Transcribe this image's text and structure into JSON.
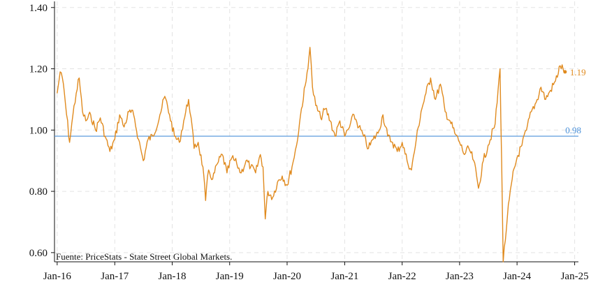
{
  "chart_data": {
    "type": "line",
    "title": "",
    "xlabel": "",
    "ylabel": "",
    "source_note": "Fuente: PriceStats - State Street Global Markets.",
    "ylim": [
      0.57,
      1.42
    ],
    "xlim": [
      "2015-12-15",
      "2025-01-25"
    ],
    "grid": true,
    "yticks": [
      {
        "value": 0.6,
        "label": "0.60"
      },
      {
        "value": 0.8,
        "label": "0.80"
      },
      {
        "value": 1.0,
        "label": "1.00"
      },
      {
        "value": 1.2,
        "label": "1.20"
      },
      {
        "value": 1.4,
        "label": "1.40"
      }
    ],
    "xticks": [
      {
        "value": "2016-01-01",
        "label": "Jan-16"
      },
      {
        "value": "2017-01-01",
        "label": "Jan-17"
      },
      {
        "value": "2018-01-01",
        "label": "Jan-18"
      },
      {
        "value": "2019-01-01",
        "label": "Jan-19"
      },
      {
        "value": "2020-01-01",
        "label": "Jan-20"
      },
      {
        "value": "2021-01-01",
        "label": "Jan-21"
      },
      {
        "value": "2022-01-01",
        "label": "Jan-22"
      },
      {
        "value": "2023-01-01",
        "label": "Jan-23"
      },
      {
        "value": "2024-01-01",
        "label": "Jan-24"
      },
      {
        "value": "2025-01-01",
        "label": "Jan-25"
      }
    ],
    "reference_line": {
      "value": 0.98,
      "label": "0.98",
      "color": "#4a90d9"
    },
    "series": [
      {
        "color": "#e08a1e",
        "last_value_label": "1.19",
        "points": [
          [
            "2016-01-01",
            1.12
          ],
          [
            "2016-01-20",
            1.19
          ],
          [
            "2016-02-10",
            1.15
          ],
          [
            "2016-03-01",
            1.05
          ],
          [
            "2016-03-20",
            0.96
          ],
          [
            "2016-04-10",
            1.05
          ],
          [
            "2016-05-01",
            1.12
          ],
          [
            "2016-05-20",
            1.17
          ],
          [
            "2016-06-10",
            1.06
          ],
          [
            "2016-07-01",
            1.03
          ],
          [
            "2016-08-01",
            1.05
          ],
          [
            "2016-09-01",
            1.0
          ],
          [
            "2016-10-01",
            1.04
          ],
          [
            "2016-11-01",
            0.98
          ],
          [
            "2016-12-01",
            0.93
          ],
          [
            "2017-01-01",
            0.97
          ],
          [
            "2017-02-01",
            1.05
          ],
          [
            "2017-03-01",
            1.01
          ],
          [
            "2017-04-01",
            1.06
          ],
          [
            "2017-05-01",
            1.05
          ],
          [
            "2017-06-01",
            0.97
          ],
          [
            "2017-07-01",
            0.9
          ],
          [
            "2017-08-01",
            0.97
          ],
          [
            "2017-09-01",
            0.98
          ],
          [
            "2017-10-15",
            1.05
          ],
          [
            "2017-11-15",
            1.11
          ],
          [
            "2017-12-15",
            1.05
          ],
          [
            "2018-01-15",
            0.98
          ],
          [
            "2018-02-15",
            0.96
          ],
          [
            "2018-03-15",
            1.03
          ],
          [
            "2018-04-15",
            1.1
          ],
          [
            "2018-05-01",
            1.04
          ],
          [
            "2018-05-20",
            0.94
          ],
          [
            "2018-06-15",
            0.96
          ],
          [
            "2018-07-15",
            0.88
          ],
          [
            "2018-08-01",
            0.77
          ],
          [
            "2018-08-20",
            0.87
          ],
          [
            "2018-09-15",
            0.84
          ],
          [
            "2018-10-15",
            0.89
          ],
          [
            "2018-11-15",
            0.92
          ],
          [
            "2018-12-15",
            0.86
          ],
          [
            "2019-01-15",
            0.91
          ],
          [
            "2019-02-15",
            0.89
          ],
          [
            "2019-03-15",
            0.86
          ],
          [
            "2019-04-15",
            0.9
          ],
          [
            "2019-05-15",
            0.88
          ],
          [
            "2019-06-15",
            0.86
          ],
          [
            "2019-07-15",
            0.92
          ],
          [
            "2019-08-01",
            0.88
          ],
          [
            "2019-08-15",
            0.71
          ],
          [
            "2019-09-01",
            0.8
          ],
          [
            "2019-10-01",
            0.78
          ],
          [
            "2019-11-01",
            0.83
          ],
          [
            "2019-12-01",
            0.85
          ],
          [
            "2020-01-01",
            0.82
          ],
          [
            "2020-02-01",
            0.88
          ],
          [
            "2020-03-01",
            0.95
          ],
          [
            "2020-04-01",
            1.07
          ],
          [
            "2020-05-01",
            1.16
          ],
          [
            "2020-05-25",
            1.27
          ],
          [
            "2020-06-10",
            1.14
          ],
          [
            "2020-07-01",
            1.08
          ],
          [
            "2020-08-01",
            1.04
          ],
          [
            "2020-09-01",
            1.07
          ],
          [
            "2020-10-01",
            1.03
          ],
          [
            "2020-11-01",
            0.98
          ],
          [
            "2020-12-01",
            1.03
          ],
          [
            "2021-01-01",
            0.98
          ],
          [
            "2021-02-01",
            1.01
          ],
          [
            "2021-03-01",
            1.05
          ],
          [
            "2021-04-01",
            1.01
          ],
          [
            "2021-05-01",
            0.98
          ],
          [
            "2021-06-01",
            0.94
          ],
          [
            "2021-07-01",
            0.97
          ],
          [
            "2021-08-01",
            0.99
          ],
          [
            "2021-09-01",
            1.05
          ],
          [
            "2021-10-01",
            0.98
          ],
          [
            "2021-11-01",
            0.96
          ],
          [
            "2021-12-01",
            0.93
          ],
          [
            "2022-01-01",
            0.96
          ],
          [
            "2022-02-01",
            0.9
          ],
          [
            "2022-03-01",
            0.87
          ],
          [
            "2022-04-01",
            0.97
          ],
          [
            "2022-05-01",
            1.06
          ],
          [
            "2022-06-01",
            1.12
          ],
          [
            "2022-07-01",
            1.17
          ],
          [
            "2022-08-01",
            1.1
          ],
          [
            "2022-09-01",
            1.15
          ],
          [
            "2022-10-01",
            1.06
          ],
          [
            "2022-11-01",
            1.03
          ],
          [
            "2022-12-01",
            0.99
          ],
          [
            "2023-01-01",
            0.96
          ],
          [
            "2023-02-01",
            0.92
          ],
          [
            "2023-03-01",
            0.94
          ],
          [
            "2023-04-01",
            0.9
          ],
          [
            "2023-05-01",
            0.81
          ],
          [
            "2023-06-01",
            0.9
          ],
          [
            "2023-07-01",
            0.95
          ],
          [
            "2023-08-15",
            1.02
          ],
          [
            "2023-09-15",
            1.2
          ],
          [
            "2023-09-25",
            0.9
          ],
          [
            "2023-10-05",
            0.57
          ],
          [
            "2023-11-01",
            0.72
          ],
          [
            "2023-12-01",
            0.84
          ],
          [
            "2024-01-01",
            0.91
          ],
          [
            "2024-02-01",
            0.95
          ],
          [
            "2024-03-01",
            1.0
          ],
          [
            "2024-04-01",
            1.06
          ],
          [
            "2024-05-01",
            1.09
          ],
          [
            "2024-06-01",
            1.14
          ],
          [
            "2024-07-01",
            1.1
          ],
          [
            "2024-08-01",
            1.13
          ],
          [
            "2024-09-01",
            1.16
          ],
          [
            "2024-10-01",
            1.21
          ],
          [
            "2024-11-01",
            1.19
          ]
        ]
      }
    ]
  }
}
